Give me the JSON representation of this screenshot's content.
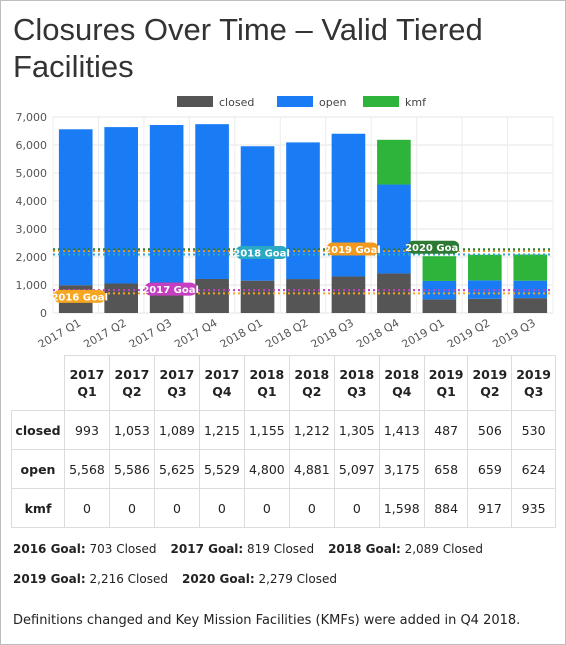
{
  "title": "Closures Over Time – Valid Tiered Facilities",
  "chart_data": {
    "type": "bar",
    "stacked": true,
    "categories": [
      "2017 Q1",
      "2017 Q2",
      "2017 Q3",
      "2017 Q4",
      "2018 Q1",
      "2018 Q2",
      "2018 Q3",
      "2018 Q4",
      "2019 Q1",
      "2019 Q2",
      "2019 Q3"
    ],
    "series": [
      {
        "name": "closed",
        "color": "#555555",
        "values": [
          993,
          1053,
          1089,
          1215,
          1155,
          1212,
          1305,
          1413,
          487,
          506,
          530
        ]
      },
      {
        "name": "open",
        "color": "#1a7cf5",
        "values": [
          5568,
          5586,
          5625,
          5529,
          4800,
          4881,
          5097,
          3175,
          658,
          659,
          624
        ]
      },
      {
        "name": "kmf",
        "color": "#2eb33b",
        "values": [
          0,
          0,
          0,
          0,
          0,
          0,
          0,
          1598,
          884,
          917,
          935
        ]
      }
    ],
    "ylim": [
      0,
      7000
    ],
    "yticks": [
      "0",
      "1,000",
      "2,000",
      "3,000",
      "4,000",
      "5,000",
      "6,000",
      "7,000"
    ],
    "grid": true,
    "legend_position": "top",
    "goal_lines": [
      {
        "label": "2016 Goal",
        "value": 703,
        "color": "#f5a623"
      },
      {
        "label": "2017 Goal",
        "value": 819,
        "color": "#c63fc0"
      },
      {
        "label": "2018 Goal",
        "value": 2089,
        "color": "#2aa8c4"
      },
      {
        "label": "2019 Goal",
        "value": 2216,
        "color": "#f39a1e"
      },
      {
        "label": "2020 Goal",
        "value": 2279,
        "color": "#2d7a34"
      }
    ]
  },
  "table": {
    "headers": [
      "2017 Q1",
      "2017 Q2",
      "2017 Q3",
      "2017 Q4",
      "2018 Q1",
      "2018 Q2",
      "2018 Q3",
      "2018 Q4",
      "2019 Q1",
      "2019 Q2",
      "2019 Q3"
    ],
    "rows": [
      {
        "label": "closed",
        "cells": [
          "993",
          "1,053",
          "1,089",
          "1,215",
          "1,155",
          "1,212",
          "1,305",
          "1,413",
          "487",
          "506",
          "530"
        ]
      },
      {
        "label": "open",
        "cells": [
          "5,568",
          "5,586",
          "5,625",
          "5,529",
          "4,800",
          "4,881",
          "5,097",
          "3,175",
          "658",
          "659",
          "624"
        ]
      },
      {
        "label": "kmf",
        "cells": [
          "0",
          "0",
          "0",
          "0",
          "0",
          "0",
          "0",
          "1,598",
          "884",
          "917",
          "935"
        ]
      }
    ]
  },
  "goals_text": [
    [
      {
        "label": "2016 Goal:",
        "value": "703 Closed"
      },
      {
        "label": "2017 Goal:",
        "value": "819 Closed"
      },
      {
        "label": "2018 Goal:",
        "value": "2,089 Closed"
      }
    ],
    [
      {
        "label": "2019 Goal:",
        "value": "2,216 Closed"
      },
      {
        "label": "2020 Goal:",
        "value": "2,279 Closed"
      }
    ]
  ],
  "note": "Definitions changed and Key Mission Facilities (KMFs) were added in Q4 2018."
}
